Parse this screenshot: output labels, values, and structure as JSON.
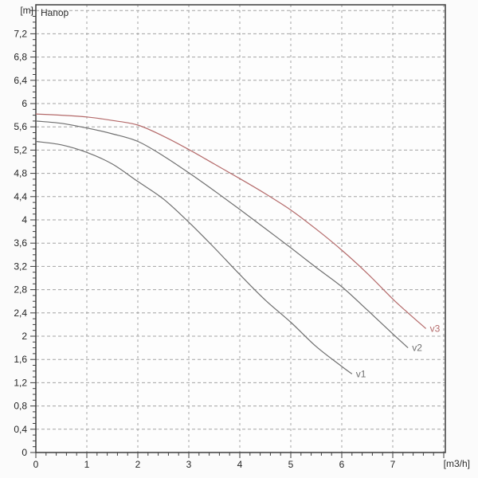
{
  "chart": {
    "title": "Напор",
    "y_unit": "[m]",
    "x_unit": "[m3/h]"
  },
  "chart_data": {
    "type": "line",
    "title": "Напор",
    "xlabel": "[m3/h]",
    "ylabel": "[m]",
    "xlim": [
      0,
      8.05
    ],
    "ylim": [
      0,
      7.7
    ],
    "grid": "dashed",
    "x_major_tick_step": 1,
    "x_minor_tick_step": 0.2,
    "y_major_tick_step": 0.4,
    "y_minor_tick_step": 0.1,
    "x_ticks": [
      0,
      1,
      2,
      3,
      4,
      5,
      6,
      7
    ],
    "x_tick_labels": [
      "0",
      "1",
      "2",
      "3",
      "4",
      "5",
      "6",
      "7"
    ],
    "y_tick_labels": [
      "0",
      "0,4",
      "0,8",
      "1,2",
      "1,6",
      "2",
      "2,4",
      "2,8",
      "3,2",
      "3,6",
      "4",
      "4,4",
      "4,8",
      "5,2",
      "5,6",
      "6",
      "6,4",
      "6,8",
      "7,2"
    ],
    "legend_position": "end-of-curve",
    "series": [
      {
        "name": "v1",
        "color": "#6f6f6f",
        "points": [
          [
            0,
            5.35
          ],
          [
            0.5,
            5.29
          ],
          [
            1,
            5.16
          ],
          [
            1.5,
            4.96
          ],
          [
            2,
            4.66
          ],
          [
            2.5,
            4.36
          ],
          [
            3,
            3.96
          ],
          [
            3.5,
            3.52
          ],
          [
            4,
            3.06
          ],
          [
            4.5,
            2.62
          ],
          [
            5,
            2.24
          ],
          [
            5.5,
            1.82
          ],
          [
            6,
            1.48
          ],
          [
            6.2,
            1.35
          ]
        ]
      },
      {
        "name": "v2",
        "color": "#6f6f6f",
        "points": [
          [
            0,
            5.7
          ],
          [
            0.5,
            5.66
          ],
          [
            1,
            5.58
          ],
          [
            1.5,
            5.48
          ],
          [
            2,
            5.35
          ],
          [
            2.5,
            5.1
          ],
          [
            3,
            4.81
          ],
          [
            3.5,
            4.5
          ],
          [
            4,
            4.18
          ],
          [
            4.5,
            3.85
          ],
          [
            5,
            3.52
          ],
          [
            5.5,
            3.18
          ],
          [
            6,
            2.85
          ],
          [
            6.5,
            2.45
          ],
          [
            7,
            2.04
          ],
          [
            7.3,
            1.8
          ]
        ]
      },
      {
        "name": "v3",
        "color": "#b46a6a",
        "points": [
          [
            0,
            5.82
          ],
          [
            0.5,
            5.8
          ],
          [
            1,
            5.77
          ],
          [
            1.5,
            5.71
          ],
          [
            2,
            5.63
          ],
          [
            2.5,
            5.44
          ],
          [
            3,
            5.21
          ],
          [
            3.5,
            4.96
          ],
          [
            4,
            4.71
          ],
          [
            4.5,
            4.45
          ],
          [
            5,
            4.17
          ],
          [
            5.5,
            3.84
          ],
          [
            6,
            3.48
          ],
          [
            6.5,
            3.08
          ],
          [
            7,
            2.64
          ],
          [
            7.3,
            2.4
          ],
          [
            7.65,
            2.13
          ]
        ]
      }
    ]
  },
  "colors": {
    "grid": "#a3a3a3",
    "axis": "#3c3c3c",
    "text": "#252525",
    "background": "#fbfbfb",
    "plot_background": "#fdfdfd"
  }
}
